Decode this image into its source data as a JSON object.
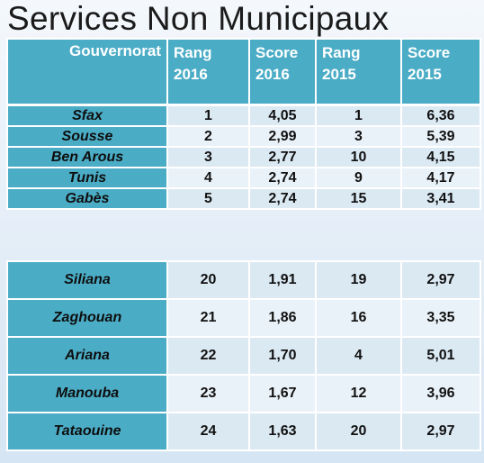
{
  "title": "Services Non Municipaux",
  "headers": {
    "gouvernorat": "Gouvernorat",
    "rang2016_a": "Rang",
    "rang2016_b": "2016",
    "score2016_a": "Score",
    "score2016_b": "2016",
    "rang2015_a": "Rang",
    "rang2015_b": "2015",
    "score2015_a": "Score",
    "score2015_b": "2015"
  },
  "top_rows": [
    {
      "gov": "Sfax",
      "r16": "1",
      "s16": "4,05",
      "r15": "1",
      "s15": "6,36"
    },
    {
      "gov": "Sousse",
      "r16": "2",
      "s16": "2,99",
      "r15": "3",
      "s15": "5,39"
    },
    {
      "gov": "Ben Arous",
      "r16": "3",
      "s16": "2,77",
      "r15": "10",
      "s15": "4,15"
    },
    {
      "gov": "Tunis",
      "r16": "4",
      "s16": "2,74",
      "r15": "9",
      "s15": "4,17"
    },
    {
      "gov": "Gabès",
      "r16": "5",
      "s16": "2,74",
      "r15": "15",
      "s15": "3,41"
    }
  ],
  "bottom_rows": [
    {
      "gov": "Siliana",
      "r16": "20",
      "s16": "1,91",
      "r15": "19",
      "s15": "2,97"
    },
    {
      "gov": "Zaghouan",
      "r16": "21",
      "s16": "1,86",
      "r15": "16",
      "s15": "3,35"
    },
    {
      "gov": "Ariana",
      "r16": "22",
      "s16": "1,70",
      "r15": "4",
      "s15": "5,01"
    },
    {
      "gov": "Manouba",
      "r16": "23",
      "s16": "1,67",
      "r15": "12",
      "s15": "3,96"
    },
    {
      "gov": "Tataouine",
      "r16": "24",
      "s16": "1,63",
      "r15": "20",
      "s15": "2,97"
    }
  ],
  "colors": {
    "header_bg": "#4bacc6",
    "cell_light": "#dbe9f3",
    "cell_lighter": "#eaf2f9"
  }
}
